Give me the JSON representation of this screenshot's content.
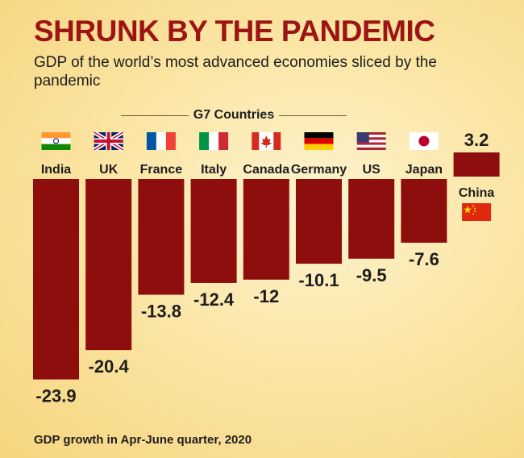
{
  "header": {
    "title": "SHRUNK BY THE PANDEMIC",
    "subtitle": "GDP of the world’s most advanced economies sliced by the pandemic",
    "group_label": "G7 Countries"
  },
  "footer": {
    "note": "GDP growth in Apr-June quarter, 2020"
  },
  "colors": {
    "bar": "#8e0d0d",
    "title": "#9c1414",
    "background": "#fbe6a6"
  },
  "chart_data": {
    "type": "bar",
    "categories": [
      "India",
      "UK",
      "France",
      "Italy",
      "Canada",
      "Germany",
      "US",
      "Japan",
      "China"
    ],
    "values": [
      -23.9,
      -20.4,
      -13.8,
      -12.4,
      -12,
      -10.1,
      -9.5,
      -7.6,
      3.2
    ],
    "value_labels": [
      "-23.9",
      "-20.4",
      "-13.8",
      "-12.4",
      "-12",
      "-10.1",
      "-9.5",
      "-7.6",
      "3.2"
    ],
    "flag_icons": [
      "india-flag-icon",
      "uk-flag-icon",
      "france-flag-icon",
      "italy-flag-icon",
      "canada-flag-icon",
      "germany-flag-icon",
      "us-flag-icon",
      "japan-flag-icon",
      "china-flag-icon"
    ],
    "title": "",
    "xlabel": "",
    "ylabel": "",
    "grid": false,
    "legend": "none"
  }
}
